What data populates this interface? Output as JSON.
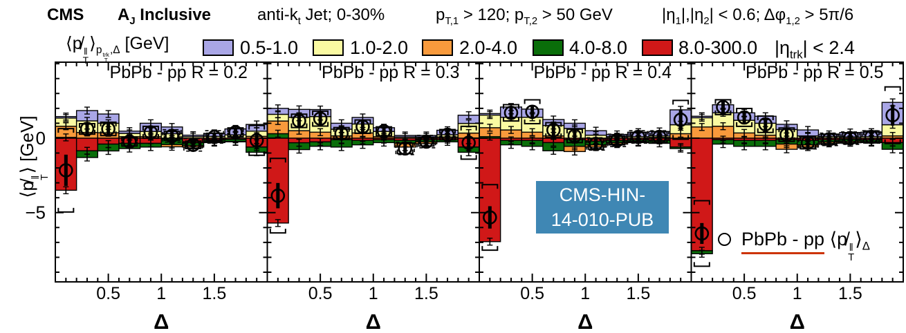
{
  "header": {
    "cms": "CMS",
    "aj": [
      {
        "t": "A"
      },
      {
        "t": "J",
        "m": "sub"
      },
      {
        "t": " Inclusive"
      }
    ],
    "antikt": [
      {
        "t": "anti-k"
      },
      {
        "t": "t",
        "m": "sub"
      },
      {
        "t": " Jet; 0-30%"
      }
    ],
    "pt_cuts": [
      {
        "t": "p"
      },
      {
        "t": "T,1",
        "m": "sub"
      },
      {
        "t": " > 120; p"
      },
      {
        "t": "T,2",
        "m": "sub"
      },
      {
        "t": " > 50 GeV"
      }
    ],
    "eta_phi_cuts": [
      {
        "t": "|η"
      },
      {
        "t": "1",
        "m": "sub"
      },
      {
        "t": "|,|η"
      },
      {
        "t": "2",
        "m": "sub"
      },
      {
        "t": "| < 0.6; Δφ"
      },
      {
        "t": "1,2",
        "m": "sub"
      },
      {
        "t": " > 5π/6"
      }
    ]
  },
  "legend": {
    "title": [
      {
        "t": "⟨p̸"
      },
      {
        "m": "stk",
        "u": "‖",
        "d": "T"
      },
      {
        "t": "⟩"
      },
      {
        "m": "sub",
        "g": [
          {
            "t": "p"
          },
          {
            "m": "stk",
            "u": "trk",
            "d": "T"
          },
          {
            "t": ",Δ"
          }
        ]
      },
      {
        "t": " [GeV]"
      }
    ],
    "items": [
      {
        "label": "0.5-1.0",
        "color": "#a9a6e6"
      },
      {
        "label": "1.0-2.0",
        "color": "#fafaa2"
      },
      {
        "label": "2.0-4.0",
        "color": "#f89a3c"
      },
      {
        "label": "4.0-8.0",
        "color": "#0a6e0a"
      },
      {
        "label": "8.0-300.0",
        "color": "#d01818"
      }
    ],
    "eta_trk": [
      {
        "t": "|η"
      },
      {
        "t": "trk",
        "m": "sub"
      },
      {
        "t": "| < 2.4"
      }
    ]
  },
  "y_axis_title": [
    {
      "t": "⟨p̸"
    },
    {
      "m": "stk",
      "u": "‖",
      "d": "T"
    },
    {
      "t": "⟩ [GeV]"
    }
  ],
  "cms_box": {
    "line1": "CMS-HIN-",
    "line2": "14-010-PUB",
    "bg": "#3f87b4"
  },
  "point_legend": {
    "marker": "open-circle",
    "underline_color": "#cc3300",
    "text": [
      {
        "t": "PbPb - pp",
        "m": "ul"
      },
      {
        "t": " ⟨p̸"
      },
      {
        "m": "stk",
        "u": "‖",
        "d": "T"
      },
      {
        "t": "⟩"
      },
      {
        "t": "Δ",
        "m": "sub"
      }
    ]
  },
  "chart_data": {
    "type": "bar",
    "stacked": true,
    "xlabel": "Δ",
    "ylabel": "⟨p̸_T^||⟩ [GeV]",
    "xlim": [
      0,
      2
    ],
    "ylim": [
      -9.65,
      5.1
    ],
    "bin_width": 0.2,
    "x": [
      0.1,
      0.3,
      0.5,
      0.7,
      0.9,
      1.1,
      1.3,
      1.5,
      1.7,
      1.9
    ],
    "xticks": [
      0.5,
      1,
      1.5
    ],
    "xtick_labels": [
      "0.5",
      "1",
      "1.5"
    ],
    "ytick_labels": [
      {
        "v": 0,
        "t": "0"
      },
      {
        "v": -5,
        "t": "−5"
      }
    ],
    "order": [
      "8.0-300.0",
      "4.0-8.0",
      "2.0-4.0",
      "1.0-2.0",
      "0.5-1.0"
    ],
    "colors": {
      "0.5-1.0": "#a9a6e6",
      "1.0-2.0": "#fafaa2",
      "2.0-4.0": "#f89a3c",
      "4.0-8.0": "#0a6e0a",
      "8.0-300.0": "#d01818"
    },
    "legend_note": "open circle = PbPb - pp ⟨p̸_T^||⟩_Δ total; brackets = systematic; thick bar = statistical",
    "panels": [
      {
        "title": "PbPb - pp R = 0.2",
        "series": {
          "0.5-1.0": [
            0.1,
            0.69,
            0.62,
            0.15,
            0.55,
            0.45,
            0.1,
            0.2,
            0.4,
            0.45
          ],
          "1.0-2.0": [
            0.55,
            0.78,
            0.64,
            0.22,
            0.35,
            0.3,
            0.1,
            0.12,
            0.22,
            0.35
          ],
          "2.0-4.0": [
            0.75,
            0.38,
            0.36,
            0.1,
            0.1,
            -0.15,
            -0.1,
            -0.05,
            -0.02,
            0.12
          ],
          "4.0-8.0": [
            0.05,
            -0.45,
            -0.46,
            -0.35,
            -0.25,
            -0.38,
            -0.2,
            -0.15,
            -0.15,
            -0.35
          ],
          "8.0-300.0": [
            -3.5,
            -0.85,
            -0.4,
            -0.35,
            -0.35,
            -0.05,
            -0.3,
            -0.1,
            -0.08,
            -0.6
          ]
        },
        "total": [
          -2.16,
          0.62,
          0.62,
          -0.23,
          0.39,
          0.15,
          -0.45,
          0.08,
          0.39,
          -0.15
        ],
        "stat": [
          1.05,
          0.45,
          0.4,
          0.35,
          0.35,
          0.35,
          0.3,
          0.3,
          0.3,
          0.55
        ],
        "syst": [
          2.8,
          0.35,
          0.45,
          0.3,
          0.4,
          0.3,
          0.25,
          0.25,
          0.3,
          1.0
        ],
        "dash_bins": [
          5,
          6,
          7
        ]
      },
      {
        "title": "PbPb - pp R = 0.3",
        "series": {
          "0.5-1.0": [
            0.4,
            0.53,
            0.47,
            0.4,
            0.44,
            0.25,
            0.1,
            0.1,
            0.3,
            0.55
          ],
          "1.0-2.0": [
            0.45,
            0.9,
            1.05,
            0.45,
            0.6,
            0.35,
            0.08,
            0.08,
            0.15,
            0.65
          ],
          "2.0-4.0": [
            0.85,
            0.5,
            0.4,
            0.15,
            0.35,
            0.1,
            -0.25,
            -0.12,
            0.08,
            0.34
          ],
          "4.0-8.0": [
            0.3,
            -0.46,
            -0.3,
            -0.5,
            -0.3,
            -0.2,
            -0.2,
            -0.15,
            -0.15,
            -0.35
          ],
          "8.0-300.0": [
            -5.7,
            -0.31,
            -0.25,
            -0.1,
            -0.15,
            -0.1,
            -0.15,
            -0.1,
            -0.1,
            -0.6
          ]
        },
        "total": [
          -3.86,
          1.16,
          1.31,
          0.31,
          0.77,
          0.46,
          -0.69,
          -0.23,
          0.23,
          -0.31
        ],
        "stat": [
          0.85,
          0.4,
          0.4,
          0.35,
          0.35,
          0.3,
          0.3,
          0.3,
          0.3,
          0.6
        ],
        "syst": [
          2.5,
          0.45,
          0.5,
          0.4,
          0.45,
          0.3,
          0.35,
          0.3,
          0.35,
          1.1
        ],
        "dash_bins": [
          6,
          7
        ]
      },
      {
        "title": "PbPb - pp R = 0.4",
        "series": {
          "0.5-1.0": [
            0.1,
            0.69,
            0.55,
            0.4,
            0.35,
            0.3,
            0.15,
            0.3,
            0.3,
            1.0
          ],
          "1.0-2.0": [
            0.85,
            0.85,
            1.0,
            0.7,
            0.65,
            0.2,
            0.1,
            0.1,
            0.1,
            0.6
          ],
          "2.0-4.0": [
            0.6,
            0.55,
            0.4,
            0.15,
            -0.35,
            -0.15,
            -0.1,
            -0.05,
            0.05,
            0.3
          ],
          "4.0-8.0": [
            0.1,
            -0.3,
            -0.4,
            -0.55,
            -0.45,
            -0.25,
            -0.15,
            -0.15,
            -0.2,
            -0.1
          ],
          "8.0-300.0": [
            -6.95,
            -0.15,
            -0.15,
            -0.3,
            -0.1,
            -0.2,
            -0.15,
            -0.1,
            -0.15,
            -0.6
          ]
        },
        "total": [
          -5.32,
          1.7,
          1.77,
          0.54,
          0.15,
          -0.39,
          -0.15,
          0.08,
          0.08,
          1.23
        ],
        "stat": [
          0.75,
          0.4,
          0.4,
          0.4,
          0.4,
          0.35,
          0.35,
          0.35,
          0.35,
          0.7
        ],
        "syst": [
          2.2,
          0.55,
          0.8,
          0.5,
          0.45,
          0.35,
          0.3,
          0.3,
          0.35,
          1.3
        ],
        "dash_bins": [
          5,
          6,
          7,
          8
        ]
      },
      {
        "title": "PbPb - pp R = 0.5",
        "series": {
          "0.5-1.0": [
            0.1,
            0.54,
            0.5,
            0.47,
            0.35,
            0.4,
            0.15,
            0.3,
            0.3,
            1.5
          ],
          "1.0-2.0": [
            0.62,
            0.9,
            0.85,
            0.8,
            0.58,
            0.15,
            0.1,
            0.08,
            0.1,
            0.75
          ],
          "2.0-4.0": [
            0.75,
            0.8,
            0.35,
            0.2,
            -0.35,
            -0.15,
            -0.1,
            -0.08,
            -0.05,
            0.15
          ],
          "4.0-8.0": [
            -0.2,
            -0.3,
            -0.4,
            -0.4,
            -0.3,
            -0.3,
            -0.15,
            -0.15,
            -0.15,
            -0.45
          ],
          "8.0-300.0": [
            -7.56,
            -0.1,
            -0.15,
            -0.15,
            -0.1,
            -0.15,
            -0.1,
            -0.08,
            -0.1,
            -0.3
          ]
        },
        "total": [
          -6.4,
          2.08,
          1.39,
          0.93,
          0.23,
          -0.31,
          -0.08,
          0.0,
          0.08,
          1.54
        ],
        "stat": [
          0.7,
          0.4,
          0.4,
          0.4,
          0.4,
          0.35,
          0.35,
          0.35,
          0.35,
          0.7
        ],
        "syst": [
          2.2,
          0.5,
          0.6,
          0.55,
          0.45,
          0.4,
          0.35,
          0.35,
          0.4,
          1.9
        ],
        "dash_bins": [
          5,
          6,
          7,
          8
        ]
      }
    ]
  }
}
